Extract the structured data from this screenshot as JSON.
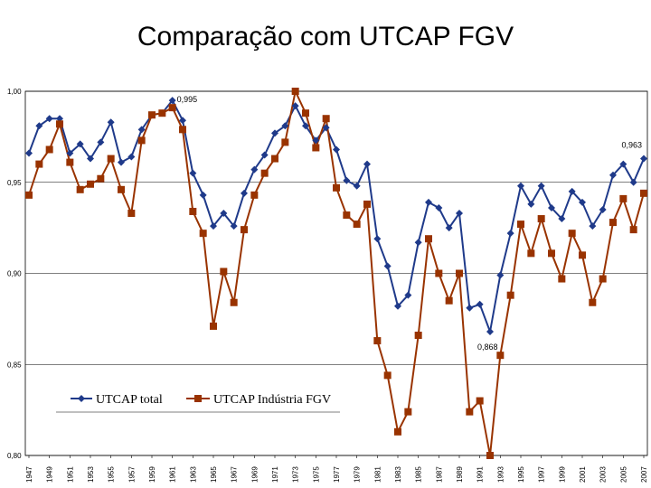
{
  "title": "Comparação com UTCAP FGV",
  "chart_data": {
    "type": "line",
    "title": "",
    "xlabel": "",
    "ylabel": "",
    "ylim": [
      0.8,
      1.0
    ],
    "yticks": [
      "1,00",
      "0,95",
      "0,90",
      "0,85",
      "0,80"
    ],
    "ytick_values": [
      1.0,
      0.95,
      0.9,
      0.85,
      0.8
    ],
    "xtick_labels": [
      "1947",
      "1949",
      "1951",
      "1953",
      "1955",
      "1957",
      "1959",
      "1961",
      "1963",
      "1965",
      "1967",
      "1969",
      "1971",
      "1973",
      "1975",
      "1977",
      "1979",
      "1981",
      "1983",
      "1985",
      "1987",
      "1989",
      "1991",
      "1993",
      "1995",
      "1997",
      "1999",
      "2001",
      "2003",
      "2005",
      "2007"
    ],
    "grid": true,
    "legend": "bottom-left",
    "x": [
      1947,
      1948,
      1949,
      1950,
      1951,
      1952,
      1953,
      1954,
      1955,
      1956,
      1957,
      1958,
      1959,
      1960,
      1961,
      1962,
      1963,
      1964,
      1965,
      1966,
      1967,
      1968,
      1969,
      1970,
      1971,
      1972,
      1973,
      1974,
      1975,
      1976,
      1977,
      1978,
      1979,
      1980,
      1981,
      1982,
      1983,
      1984,
      1985,
      1986,
      1987,
      1988,
      1989,
      1990,
      1991,
      1992,
      1993,
      1994,
      1995,
      1996,
      1997,
      1998,
      1999,
      2000,
      2001,
      2002,
      2003,
      2004,
      2005,
      2006,
      2007
    ],
    "series": [
      {
        "name": "UTCAP total",
        "color": "#1f3a8a",
        "marker": "diamond",
        "values": [
          0.966,
          0.981,
          0.985,
          0.985,
          0.966,
          0.971,
          0.963,
          0.972,
          0.983,
          0.961,
          0.964,
          0.979,
          0.987,
          0.988,
          0.995,
          0.984,
          0.955,
          0.943,
          0.926,
          0.933,
          0.926,
          0.944,
          0.957,
          0.965,
          0.977,
          0.981,
          0.992,
          0.981,
          0.973,
          0.98,
          0.968,
          0.951,
          0.948,
          0.96,
          0.919,
          0.904,
          0.882,
          0.888,
          0.917,
          0.939,
          0.936,
          0.925,
          0.933,
          0.881,
          0.883,
          0.868,
          0.899,
          0.922,
          0.948,
          0.938,
          0.948,
          0.936,
          0.93,
          0.945,
          0.939,
          0.926,
          0.935,
          0.954,
          0.96,
          0.95,
          0.963
        ]
      },
      {
        "name": "UTCAP Indústria FGV",
        "color": "#993300",
        "marker": "square",
        "values": [
          0.943,
          0.96,
          0.968,
          0.982,
          0.961,
          0.946,
          0.949,
          0.952,
          0.963,
          0.946,
          0.933,
          0.973,
          0.987,
          0.988,
          0.991,
          0.979,
          0.934,
          0.922,
          0.871,
          0.901,
          0.884,
          0.924,
          0.943,
          0.955,
          0.963,
          0.972,
          1.0,
          0.988,
          0.969,
          0.985,
          0.947,
          0.932,
          0.927,
          0.938,
          0.863,
          0.844,
          0.813,
          0.824,
          0.866,
          0.919,
          0.9,
          0.885,
          0.9,
          0.824,
          0.83,
          0.8,
          0.855,
          0.888,
          0.927,
          0.911,
          0.93,
          0.911,
          0.897,
          0.922,
          0.91,
          0.884,
          0.897,
          0.928,
          0.941,
          0.924,
          0.944
        ]
      }
    ],
    "annotations": [
      {
        "text": "0,995",
        "x": 1961,
        "y": 0.995
      },
      {
        "text": "0,963",
        "x": 2007,
        "y": 0.963
      },
      {
        "text": "0,868",
        "x": 1992,
        "y": 0.868
      }
    ]
  }
}
